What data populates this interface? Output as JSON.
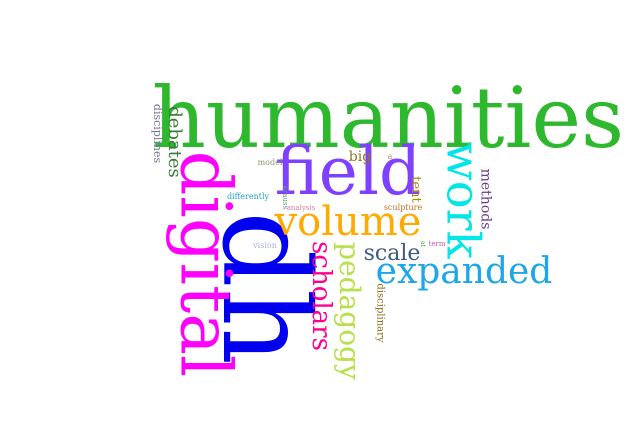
{
  "word_cloud": {
    "words": [
      {
        "text": "humanities",
        "color": "#2eb82e",
        "orientation": "horizontal"
      },
      {
        "text": "dh",
        "color": "#0000ee",
        "orientation": "vertical-down"
      },
      {
        "text": "digital",
        "color": "#ff00ff",
        "orientation": "vertical-down"
      },
      {
        "text": "field",
        "color": "#8040ff",
        "orientation": "horizontal"
      },
      {
        "text": "work",
        "color": "#00e5e5",
        "orientation": "vertical-down"
      },
      {
        "text": "volume",
        "color": "#ffaa00",
        "orientation": "horizontal"
      },
      {
        "text": "expanded",
        "color": "#1ea7e8",
        "orientation": "horizontal"
      },
      {
        "text": "pedagogy",
        "color": "#b8e04a",
        "orientation": "vertical-down"
      },
      {
        "text": "scholars",
        "color": "#ff0090",
        "orientation": "vertical-down"
      },
      {
        "text": "scale",
        "color": "#3d5a80",
        "orientation": "horizontal"
      },
      {
        "text": "debates",
        "color": "#3b7a3b",
        "orientation": "vertical-down"
      },
      {
        "text": "methods",
        "color": "#6a3a8a",
        "orientation": "vertical-down"
      },
      {
        "text": "tent",
        "color": "#b8860b",
        "orientation": "vertical-down"
      },
      {
        "text": "big",
        "color": "#8b7a1a",
        "orientation": "horizontal"
      },
      {
        "text": "disciplines",
        "color": "#777799",
        "orientation": "vertical-down"
      },
      {
        "text": "disciplinary",
        "color": "#8b6b1a",
        "orientation": "vertical-down"
      },
      {
        "text": "model",
        "color": "#999977",
        "orientation": "horizontal"
      },
      {
        "text": "differently",
        "color": "#2aa0c8",
        "orientation": "horizontal"
      },
      {
        "text": "analysis",
        "color": "#e080a0",
        "orientation": "horizontal"
      },
      {
        "text": "sculpture",
        "color": "#c07020",
        "orientation": "horizontal"
      },
      {
        "text": "krauss",
        "color": "#5a9a7a",
        "orientation": "vertical-down"
      },
      {
        "text": "vision",
        "color": "#a8b0d8",
        "orientation": "horizontal"
      },
      {
        "text": "term",
        "color": "#c060c0",
        "orientation": "horizontal"
      },
      {
        "text": "a",
        "color": "#cc8888",
        "orientation": "horizontal"
      },
      {
        "text": "at",
        "color": "#44aa44",
        "orientation": "vertical-down"
      }
    ]
  }
}
